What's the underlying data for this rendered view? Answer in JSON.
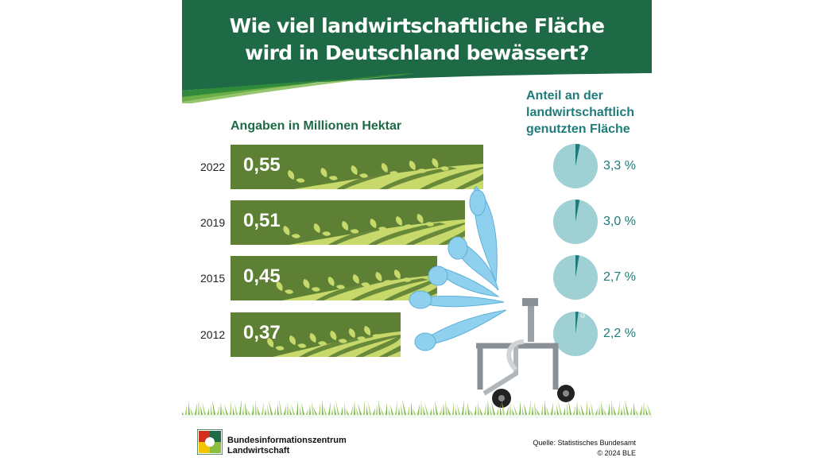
{
  "title": {
    "line1": "Wie viel landwirtschaftliche Fläche",
    "line2": "wird in Deutschland bewässert?"
  },
  "unit_label": "Angaben in Millionen Hektar",
  "share_heading": [
    "Anteil an der",
    "landwirtschaftlich",
    "genutzten Fläche"
  ],
  "footer": {
    "org_line1": "Bundesinformationszentrum",
    "org_line2": "Landwirtschaft",
    "source": "Quelle: Statistisches Bundesamt",
    "copyright": "© 2024 BLE",
    "watermark": "© BLE"
  },
  "colors": {
    "header_green": "#1f6a46",
    "bar_dark": "#5e8035",
    "bar_light": "#c6d96a",
    "pie_fill": "#9ed0d4",
    "pie_slice": "#1f7c7a",
    "water": "#8fd0ee"
  },
  "chart_data": {
    "type": "bar",
    "orientation": "horizontal",
    "categories": [
      "2022",
      "2019",
      "2015",
      "2012"
    ],
    "series": [
      {
        "values": [
          0.55,
          0.51,
          0.45,
          0.37
        ],
        "labels": [
          "0,55",
          "0,51",
          "0,45",
          "0,37"
        ]
      },
      {
        "values": [
          3.3,
          3.0,
          2.7,
          2.2
        ],
        "labels": [
          "3,3 %",
          "3,0 %",
          "2,7 %",
          "2,2 %"
        ]
      }
    ],
    "xlim": [
      0,
      0.55
    ],
    "grid": false,
    "legend": "none"
  }
}
